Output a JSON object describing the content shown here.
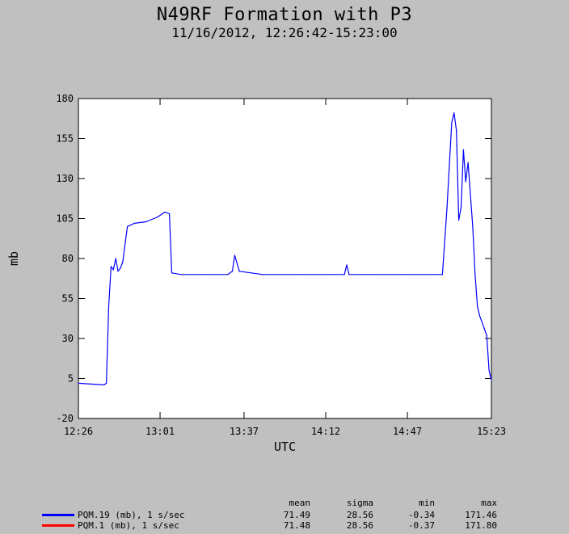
{
  "chart_data": {
    "type": "line",
    "title": "N49RF Formation with P3",
    "subtitle": "11/16/2012, 12:26:42-15:23:00",
    "xlabel": "UTC",
    "ylabel": "mb",
    "ylim": [
      -20,
      180
    ],
    "yticks": [
      "-20",
      "5",
      "30",
      "55",
      "80",
      "105",
      "130",
      "155",
      "180"
    ],
    "xlim": [
      "12:26",
      "15:23"
    ],
    "xticks": [
      "12:26",
      "13:01",
      "13:37",
      "14:12",
      "14:47",
      "15:23"
    ],
    "grid": false,
    "legend_position": "bottom-left",
    "stat_headers": [
      "mean",
      "sigma",
      "min",
      "max"
    ],
    "series": [
      {
        "name": "PQM.19 (mb), 1 s/sec",
        "color": "#0000ff",
        "stats": [
          "71.49",
          "28.56",
          "-0.34",
          "171.46"
        ],
        "x": [
          "12:26",
          "12:37",
          "12:38",
          "12:39",
          "12:40",
          "12:41",
          "12:42",
          "12:43",
          "12:44",
          "12:45",
          "12:47",
          "12:50",
          "12:55",
          "13:00",
          "13:03",
          "13:05",
          "13:06",
          "13:10",
          "13:20",
          "13:30",
          "13:32",
          "13:33",
          "13:35",
          "13:45",
          "14:00",
          "14:15",
          "14:20",
          "14:21",
          "14:22",
          "14:30",
          "14:45",
          "15:00",
          "15:02",
          "15:04",
          "15:06",
          "15:07",
          "15:08",
          "15:09",
          "15:10",
          "15:11",
          "15:12",
          "15:13",
          "15:14",
          "15:15",
          "15:16",
          "15:17",
          "15:18",
          "15:19",
          "15:20",
          "15:21",
          "15:22",
          "15:23"
        ],
        "values": [
          2,
          1,
          2,
          50,
          75,
          73,
          80,
          72,
          74,
          78,
          100,
          102,
          103,
          106,
          109,
          108,
          71,
          70,
          70,
          70,
          72,
          82,
          72,
          70,
          70,
          70,
          70,
          76,
          70,
          70,
          70,
          70,
          70,
          112,
          165,
          171,
          160,
          104,
          112,
          148,
          128,
          140,
          120,
          100,
          70,
          50,
          44,
          40,
          36,
          32,
          10,
          4
        ]
      },
      {
        "name": "PQM.1 (mb), 1 s/sec",
        "color": "#ff0000",
        "stats": [
          "71.48",
          "28.56",
          "-0.37",
          "171.80"
        ]
      }
    ]
  }
}
